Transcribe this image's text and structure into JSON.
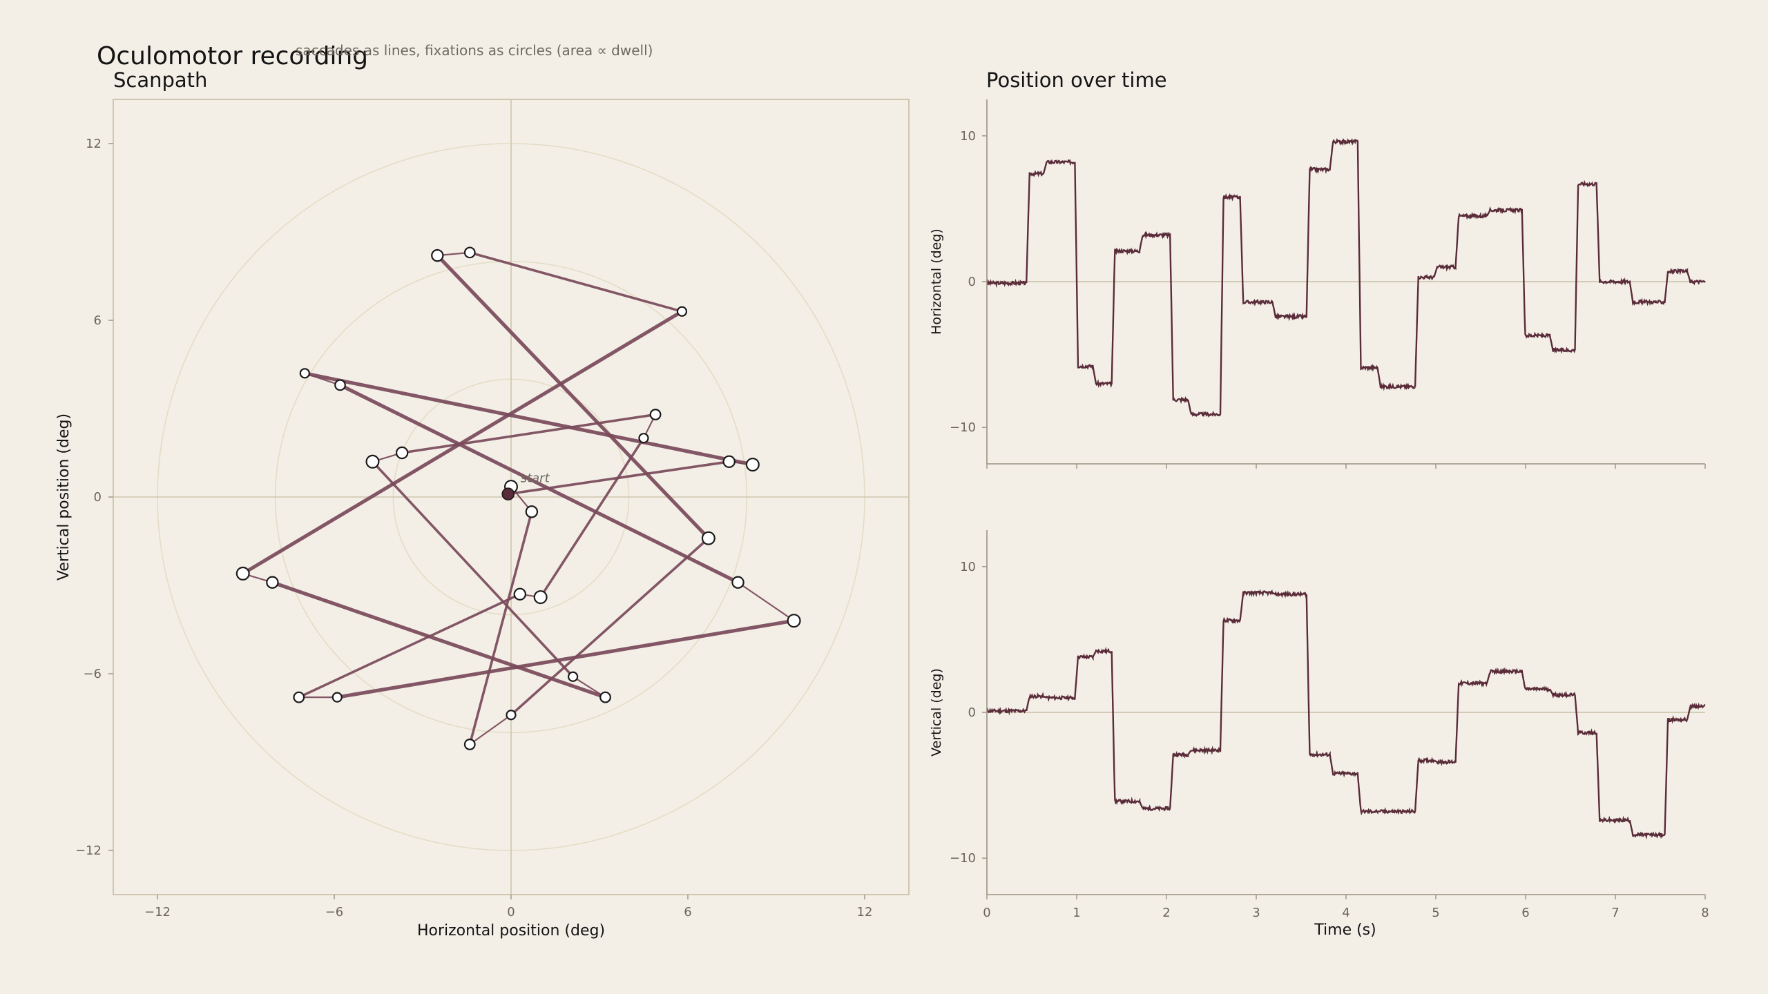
{
  "title": "Oculomotor recording",
  "subtitle": "saccades as lines, fixations as circles (area ∝ dwell)",
  "colors": {
    "background": "#f3efe7",
    "trace": "#5a2c3a",
    "saccade": "#7a4a5a",
    "grid": "#cfc6ad",
    "ring": "#e4dcc4",
    "fixation_fill": "#ffffff",
    "start_fill": "#5a2c3a"
  },
  "chart_data": [
    {
      "type": "scatter",
      "title": "Scanpath",
      "xlabel": "Horizontal position (deg)",
      "ylabel": "Vertical position (deg)",
      "xlim": [
        -13.5,
        13.5
      ],
      "ylim": [
        -13.5,
        13.5
      ],
      "xticks": [
        -12,
        -6,
        0,
        6,
        12
      ],
      "yticks": [
        -12,
        -6,
        0,
        6,
        12
      ],
      "rings": [
        4,
        8,
        12
      ],
      "start_label": "start",
      "start": [
        -0.1,
        0.1
      ],
      "fixations": [
        [
          -0.1,
          0.1
        ],
        [
          0.0,
          0.35
        ],
        [
          0.7,
          -0.5
        ],
        [
          -1.4,
          -8.4
        ],
        [
          0.0,
          -7.4
        ],
        [
          6.7,
          -1.4
        ],
        [
          -2.5,
          8.2
        ],
        [
          -1.4,
          8.3
        ],
        [
          5.8,
          6.3
        ],
        [
          -9.1,
          -2.6
        ],
        [
          -8.1,
          -2.9
        ],
        [
          3.2,
          -6.8
        ],
        [
          2.1,
          -6.1
        ],
        [
          -4.7,
          1.2
        ],
        [
          -3.7,
          1.5
        ],
        [
          4.9,
          2.8
        ],
        [
          4.5,
          2.0
        ],
        [
          1.0,
          -3.4
        ],
        [
          0.3,
          -3.3
        ],
        [
          -7.2,
          -6.8
        ],
        [
          -5.9,
          -6.8
        ],
        [
          9.6,
          -4.2
        ],
        [
          7.7,
          -2.9
        ],
        [
          -5.8,
          3.8
        ],
        [
          -7.0,
          4.2
        ],
        [
          8.2,
          1.1
        ],
        [
          7.4,
          1.2
        ],
        [
          -0.1,
          0.1
        ]
      ]
    },
    {
      "type": "line",
      "title": "Position over time",
      "xlabel": "",
      "ylabel": "Horizontal (deg)",
      "xlim": [
        0,
        8
      ],
      "ylim": [
        -12.5,
        12.5
      ],
      "yticks": [
        -10,
        0,
        10
      ],
      "xticks": [
        0,
        1,
        2,
        3,
        4,
        5,
        6,
        7,
        8
      ],
      "steps_t": [
        0,
        0.44,
        0.63,
        0.98,
        1.18,
        1.39,
        1.7,
        2.04,
        2.24,
        2.6,
        2.82,
        3.18,
        3.56,
        3.82,
        4.13,
        4.35,
        4.77,
        4.98,
        5.22,
        5.57,
        5.96,
        6.27,
        6.55,
        6.79,
        7.16,
        7.55,
        7.8,
        8.0
      ],
      "values": [
        -0.1,
        7.4,
        8.2,
        -5.8,
        -7.0,
        2.1,
        3.2,
        -8.1,
        -9.1,
        5.8,
        -1.4,
        -2.4,
        7.7,
        9.6,
        -5.9,
        -7.2,
        0.3,
        1.0,
        4.5,
        4.9,
        -3.7,
        -4.7,
        6.7,
        0.0,
        -1.4,
        0.7,
        0.0
      ]
    },
    {
      "type": "line",
      "title": "",
      "xlabel": "Time (s)",
      "ylabel": "Vertical (deg)",
      "xlim": [
        0,
        8
      ],
      "ylim": [
        -12.5,
        12.5
      ],
      "yticks": [
        -10,
        0,
        10
      ],
      "xticks": [
        0,
        1,
        2,
        3,
        4,
        5,
        6,
        7,
        8
      ],
      "xticklabels": [
        "0",
        "1",
        "2",
        "3",
        "4",
        "5",
        "6",
        "7",
        "8"
      ],
      "steps_t": [
        0,
        0.44,
        0.63,
        0.98,
        1.18,
        1.39,
        1.7,
        2.04,
        2.24,
        2.6,
        2.82,
        3.18,
        3.56,
        3.82,
        4.13,
        4.35,
        4.77,
        4.98,
        5.22,
        5.57,
        5.96,
        6.27,
        6.55,
        6.79,
        7.16,
        7.55,
        7.8,
        8.0
      ],
      "values": [
        0.1,
        1.1,
        1.0,
        3.8,
        4.2,
        -6.1,
        -6.6,
        -2.9,
        -2.6,
        6.3,
        8.2,
        8.1,
        -2.9,
        -4.2,
        -6.8,
        -6.8,
        -3.3,
        -3.4,
        2.0,
        2.8,
        1.6,
        1.2,
        -1.4,
        -7.4,
        -8.4,
        -0.5,
        0.4
      ]
    }
  ]
}
